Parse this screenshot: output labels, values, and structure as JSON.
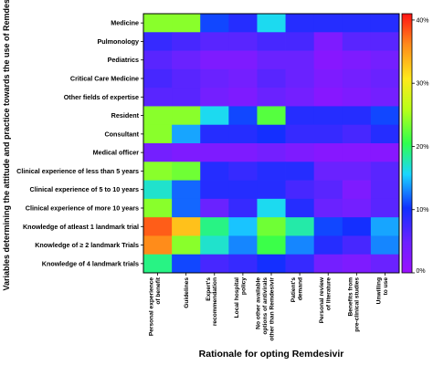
{
  "chart_data": {
    "type": "heatmap",
    "title": "",
    "xlabel": "Rationale for opting Remdesivir",
    "ylabel": "Variables determining the attitude and practice towards the use of Remdesivir",
    "rows": [
      "Medicine",
      "Pulmonology",
      "Pediatrics",
      "Critical Care Medicine",
      "Other fields of expertise",
      "Resident",
      "Consultant",
      "Medical officer",
      "Clinical experience of less than 5 years",
      "Clinical experience of 5 to 10 years",
      "Clinical experience of more 10 years",
      "Knowledge of atleast 1 landmark trial",
      "Knowledge of ≥ 2 landmark Trials",
      "Knowledge of 4 landmark trials"
    ],
    "columns": [
      "Personal experience of benefit",
      "Guidelines",
      "Expert's recommendation",
      "Local hospital policy",
      "No other available options of antivirals other than Remdesivir",
      "Patient's demand",
      "Personal review of literature",
      "Benefits from pre-clinical studies",
      "Unwilling to use"
    ],
    "values": [
      [
        24,
        24,
        11,
        9,
        16,
        9,
        9,
        9,
        9
      ],
      [
        8,
        7,
        6,
        6,
        7,
        7,
        3,
        6,
        6
      ],
      [
        6,
        5,
        3,
        3,
        5,
        5,
        2,
        3,
        4
      ],
      [
        7,
        6,
        5,
        4,
        6,
        5,
        3,
        4,
        5
      ],
      [
        6,
        6,
        4,
        3,
        5,
        4,
        2,
        3,
        4
      ],
      [
        24,
        24,
        16,
        11,
        22,
        9,
        9,
        9,
        11
      ],
      [
        24,
        14,
        9,
        9,
        10,
        8,
        8,
        7,
        9
      ],
      [
        4,
        3,
        3,
        3,
        4,
        3,
        2,
        2,
        2
      ],
      [
        24,
        23,
        9,
        8,
        9,
        9,
        5,
        5,
        6
      ],
      [
        17,
        12,
        9,
        9,
        9,
        7,
        6,
        3,
        6
      ],
      [
        24,
        12,
        5,
        8,
        16,
        9,
        5,
        4,
        6
      ],
      [
        38,
        33,
        19,
        15,
        23,
        18,
        11,
        10,
        14
      ],
      [
        36,
        24,
        17,
        13,
        21,
        13,
        9,
        7,
        13
      ],
      [
        19,
        11,
        7,
        8,
        10,
        8,
        4,
        3,
        5
      ]
    ],
    "colorbar": {
      "min": 0,
      "max": 41,
      "ticks": [
        0,
        10,
        20,
        30,
        40
      ],
      "tick_labels": [
        "0%",
        "10%",
        "20%",
        "30%",
        "40%"
      ],
      "colormap": "gist_rainbow (purple-blue-green-yellow-red)"
    },
    "grid": false,
    "legend": "colorbar at right"
  }
}
